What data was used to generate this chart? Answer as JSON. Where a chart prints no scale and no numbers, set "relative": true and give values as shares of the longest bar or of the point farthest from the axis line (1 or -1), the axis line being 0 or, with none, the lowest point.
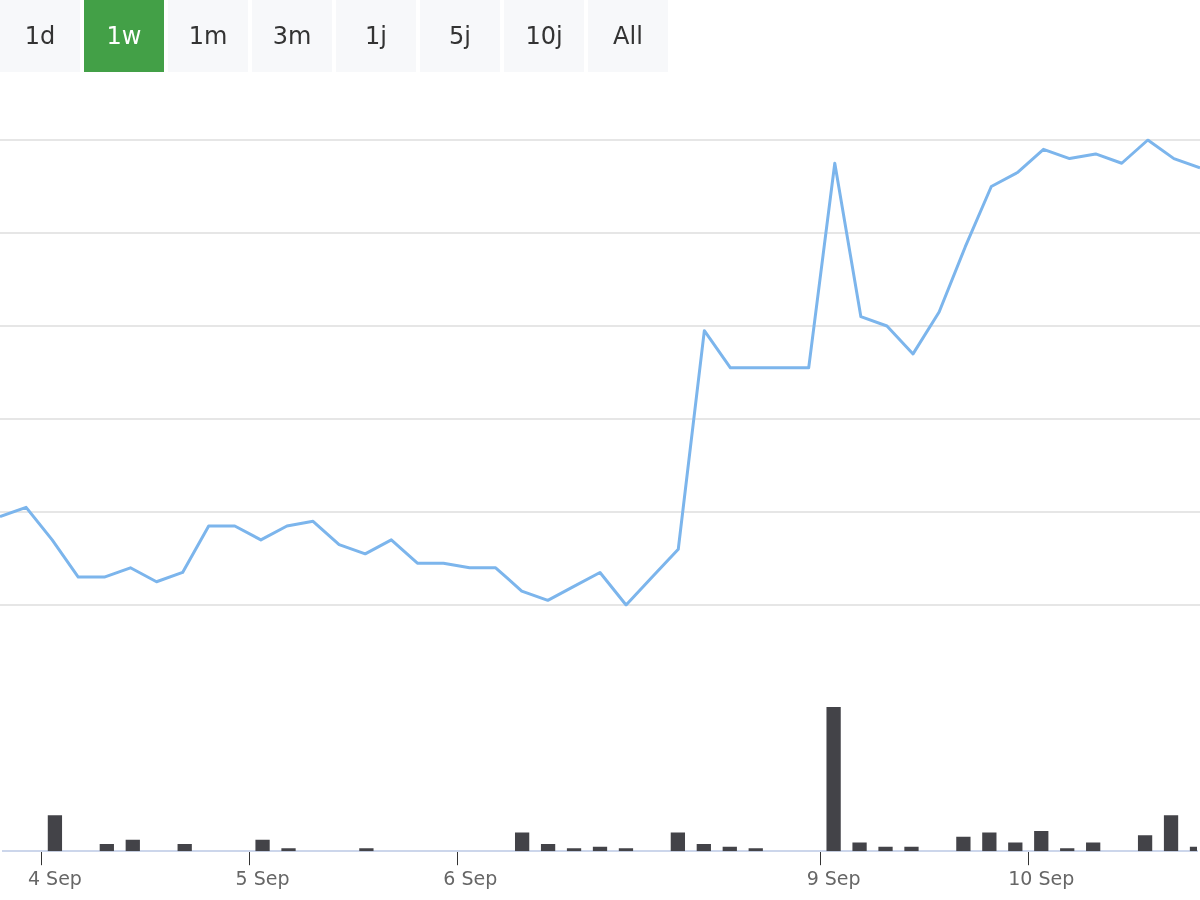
{
  "chart_data": [
    {
      "type": "line",
      "relative": true,
      "grid": "y",
      "tick_labels": false,
      "annotations": [
        "1d",
        "1w",
        "1m",
        "3m",
        "1j",
        "5j",
        "10j",
        "All"
      ],
      "categories": [
        null,
        null,
        null,
        null,
        null,
        null,
        null,
        null,
        null,
        null,
        null,
        null,
        null,
        null,
        null,
        null,
        null,
        null,
        null,
        null,
        null,
        null,
        null,
        null,
        null,
        null,
        null,
        null,
        null,
        null,
        null,
        null,
        null,
        null,
        null,
        null,
        null,
        null,
        null,
        null,
        null,
        null,
        null,
        null,
        null,
        null,
        null
      ],
      "series": [
        {
          "color": "#7cb5ec",
          "values": [
            0.19,
            0.21,
            0.14,
            0.06,
            0.06,
            0.08,
            0.05,
            0.07,
            0.17,
            0.17,
            0.14,
            0.17,
            0.18,
            0.13,
            0.11,
            0.14,
            0.09,
            0.09,
            0.08,
            0.08,
            0.03,
            0.01,
            0.04,
            0.07,
            0,
            0.06,
            0.12,
            0.59,
            0.51,
            0.51,
            0.51,
            0.51,
            0.95,
            0.62,
            0.6,
            0.54,
            0.63,
            0.77,
            0.9,
            0.93,
            0.98,
            0.96,
            0.97,
            0.95,
            1,
            0.96,
            0.94
          ]
        }
      ]
    },
    {
      "type": "bar",
      "relative": true,
      "tick_labels": "x",
      "categories": [
        null,
        null,
        "4 Sep",
        null,
        null,
        null,
        null,
        null,
        null,
        null,
        "5 Sep",
        null,
        null,
        null,
        null,
        null,
        null,
        null,
        "6 Sep",
        null,
        null,
        null,
        null,
        null,
        null,
        null,
        null,
        null,
        null,
        null,
        null,
        null,
        "9 Sep",
        null,
        null,
        null,
        null,
        null,
        null,
        null,
        "10 Sep",
        null,
        null,
        null,
        null,
        null,
        null
      ],
      "series": [
        {
          "color": "#434348",
          "values": [
            null,
            null,
            0.25,
            null,
            0.05,
            0.08,
            null,
            0.05,
            null,
            null,
            0.08,
            0.02,
            null,
            null,
            0.02,
            null,
            null,
            null,
            null,
            null,
            0.13,
            0.05,
            0.02,
            0.03,
            0.02,
            null,
            0.13,
            0.05,
            0.03,
            0.02,
            null,
            null,
            1,
            0.06,
            0.03,
            0.03,
            null,
            0.1,
            0.13,
            0.06,
            0.14,
            0.02,
            0.06,
            null,
            0.11,
            0.25,
            0.03
          ]
        }
      ]
    }
  ]
}
